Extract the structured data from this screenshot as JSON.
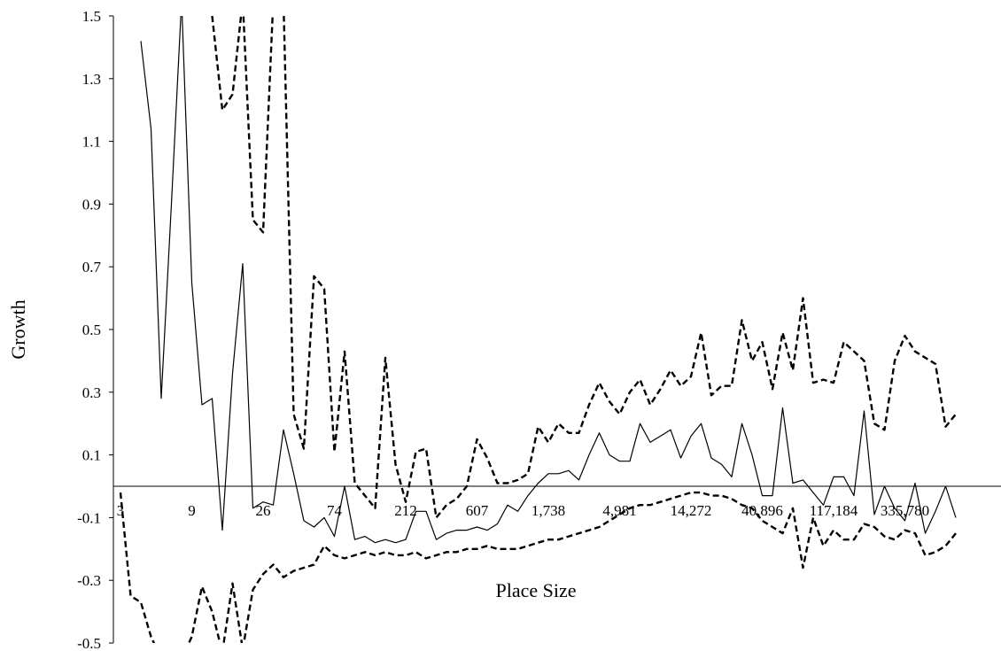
{
  "chart_data": {
    "type": "line",
    "xlabel": "Place Size",
    "ylabel": "Growth",
    "ylim": [
      -0.5,
      1.5
    ],
    "ytick_labels": [
      "-0.5",
      "-0.3",
      "-0.1",
      "0.1",
      "0.3",
      "0.5",
      "0.7",
      "0.9",
      "1.1",
      "1.3",
      "1.5"
    ],
    "x_tick_labels": [
      {
        "i": 0,
        "label": "3"
      },
      {
        "i": 7,
        "label": "9"
      },
      {
        "i": 14,
        "label": "26"
      },
      {
        "i": 21,
        "label": "74"
      },
      {
        "i": 28,
        "label": "212"
      },
      {
        "i": 35,
        "label": "607"
      },
      {
        "i": 42,
        "label": "1,738"
      },
      {
        "i": 49,
        "label": "4,981"
      },
      {
        "i": 56,
        "label": "14,272"
      },
      {
        "i": 63,
        "label": "40,896"
      },
      {
        "i": 70,
        "label": "117,184"
      },
      {
        "i": 77,
        "label": "335,780"
      }
    ],
    "grid": false,
    "legend": "none",
    "series": [
      {
        "style": "solid",
        "values": [
          null,
          null,
          1.42,
          1.14,
          0.28,
          0.9,
          1.55,
          0.65,
          0.26,
          0.28,
          -0.14,
          0.36,
          0.71,
          -0.07,
          -0.05,
          -0.06,
          0.18,
          0.04,
          -0.11,
          -0.13,
          -0.1,
          -0.16,
          0.0,
          -0.17,
          -0.16,
          -0.18,
          -0.17,
          -0.18,
          -0.17,
          -0.08,
          -0.08,
          -0.17,
          -0.15,
          -0.14,
          -0.14,
          -0.13,
          -0.14,
          -0.12,
          -0.06,
          -0.08,
          -0.03,
          0.01,
          0.04,
          0.04,
          0.05,
          0.02,
          0.1,
          0.17,
          0.1,
          0.08,
          0.08,
          0.2,
          0.14,
          0.16,
          0.18,
          0.09,
          0.16,
          0.2,
          0.09,
          0.07,
          0.03,
          0.2,
          0.1,
          -0.03,
          -0.03,
          0.25,
          0.01,
          0.02,
          -0.02,
          -0.06,
          0.03,
          0.03,
          -0.03,
          0.24,
          -0.09,
          0.0,
          -0.07,
          -0.11,
          0.01,
          -0.15,
          -0.08,
          0.0,
          -0.1
        ]
      },
      {
        "style": "dashed",
        "values": [
          null,
          null,
          null,
          null,
          null,
          null,
          null,
          null,
          null,
          1.5,
          1.2,
          1.25,
          1.55,
          0.85,
          0.81,
          1.55,
          1.55,
          0.23,
          0.12,
          0.67,
          0.63,
          0.11,
          0.43,
          0.01,
          -0.03,
          -0.07,
          0.41,
          0.07,
          -0.05,
          0.11,
          0.12,
          -0.1,
          -0.06,
          -0.04,
          0.0,
          0.15,
          0.09,
          0.01,
          0.01,
          0.02,
          0.04,
          0.19,
          0.14,
          0.2,
          0.17,
          0.17,
          0.26,
          0.33,
          0.27,
          0.23,
          0.3,
          0.34,
          0.26,
          0.31,
          0.37,
          0.32,
          0.35,
          0.49,
          0.29,
          0.32,
          0.32,
          0.53,
          0.4,
          0.46,
          0.31,
          0.49,
          0.37,
          0.6,
          0.33,
          0.34,
          0.33,
          0.46,
          0.43,
          0.4,
          0.2,
          0.18,
          0.4,
          0.48,
          0.43,
          0.41,
          0.39,
          0.19,
          0.23
        ]
      },
      {
        "style": "dashed",
        "values": [
          -0.02,
          -0.35,
          -0.37,
          -0.48,
          -0.55,
          -0.55,
          -0.55,
          -0.48,
          -0.32,
          -0.4,
          -0.53,
          -0.31,
          -0.52,
          -0.33,
          -0.28,
          -0.25,
          -0.29,
          -0.27,
          -0.26,
          -0.25,
          -0.19,
          -0.22,
          -0.23,
          -0.22,
          -0.21,
          -0.22,
          -0.21,
          -0.22,
          -0.22,
          -0.21,
          -0.23,
          -0.22,
          -0.21,
          -0.21,
          -0.2,
          -0.2,
          -0.19,
          -0.2,
          -0.2,
          -0.2,
          -0.19,
          -0.18,
          -0.17,
          -0.17,
          -0.16,
          -0.15,
          -0.14,
          -0.13,
          -0.11,
          -0.09,
          -0.07,
          -0.06,
          -0.06,
          -0.05,
          -0.04,
          -0.03,
          -0.02,
          -0.02,
          -0.03,
          -0.03,
          -0.04,
          -0.06,
          -0.07,
          -0.11,
          -0.13,
          -0.15,
          -0.07,
          -0.26,
          -0.1,
          -0.19,
          -0.14,
          -0.17,
          -0.17,
          -0.12,
          -0.13,
          -0.16,
          -0.17,
          -0.14,
          -0.15,
          -0.22,
          -0.21,
          -0.19,
          -0.15
        ]
      }
    ]
  }
}
